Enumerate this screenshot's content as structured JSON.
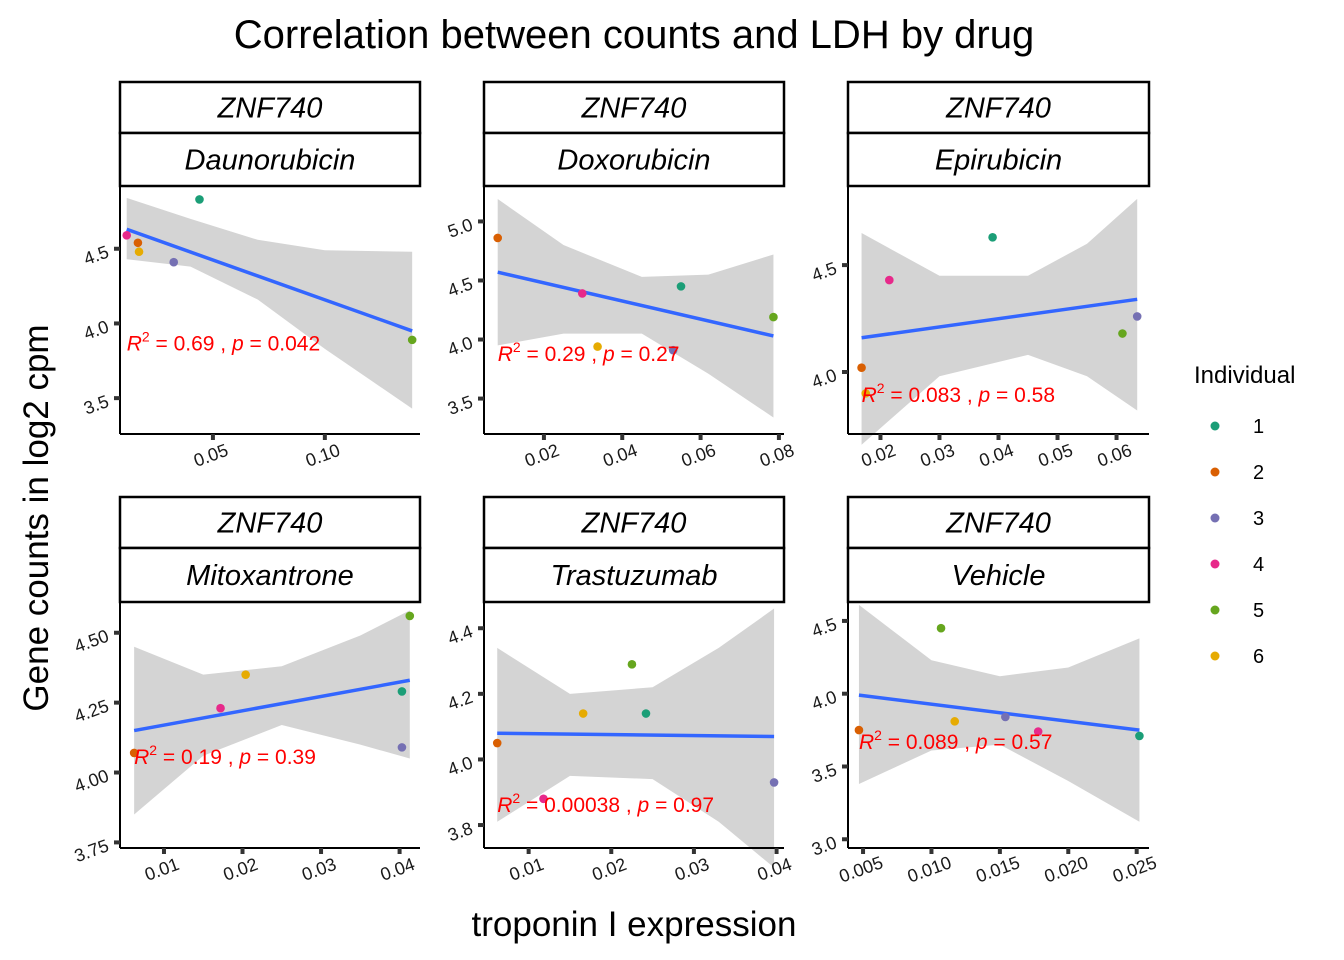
{
  "chart_data": {
    "type": "scatter",
    "title": "Correlation between counts and LDH by drug",
    "xlabel": "troponin I expression",
    "ylabel": "Gene counts in log2 cpm",
    "legend": {
      "title": "Individual",
      "placement": "right",
      "entries": [
        {
          "label": "1",
          "color": "#1B9E77"
        },
        {
          "label": "2",
          "color": "#D95F02"
        },
        {
          "label": "3",
          "color": "#7570B3"
        },
        {
          "label": "4",
          "color": "#E7298A"
        },
        {
          "label": "5",
          "color": "#66A61E"
        },
        {
          "label": "6",
          "color": "#E6AB02"
        }
      ]
    },
    "grid": false,
    "fit_line_color": "#3366FF",
    "ci_band_color": "#d4d4d4",
    "panels": [
      {
        "gene": "ZNF740",
        "drug": "Daunorubicin",
        "xlim": [
          0.0085,
          0.1425
        ],
        "ylim": [
          3.26,
          4.92
        ],
        "xticks": [
          0.05,
          0.1
        ],
        "xtick_labels": [
          "0.05",
          "0.10"
        ],
        "yticks": [
          3.5,
          4.0,
          4.5
        ],
        "ytick_labels": [
          "3.5",
          "4.0",
          "4.5"
        ],
        "points": [
          {
            "ind": "1",
            "x": 0.044,
            "y": 4.83
          },
          {
            "ind": "2",
            "x": 0.0165,
            "y": 4.54
          },
          {
            "ind": "3",
            "x": 0.0325,
            "y": 4.41
          },
          {
            "ind": "4",
            "x": 0.0115,
            "y": 4.59
          },
          {
            "ind": "5",
            "x": 0.139,
            "y": 3.89
          },
          {
            "ind": "6",
            "x": 0.017,
            "y": 4.48
          }
        ],
        "fit": [
          [
            0.0115,
            4.63
          ],
          [
            0.139,
            3.95
          ]
        ],
        "band_upper": [
          [
            0.0115,
            4.84
          ],
          [
            0.04,
            4.7
          ],
          [
            0.07,
            4.56
          ],
          [
            0.1,
            4.49
          ],
          [
            0.139,
            4.48
          ]
        ],
        "band_lower": [
          [
            0.0115,
            4.43
          ],
          [
            0.04,
            4.38
          ],
          [
            0.07,
            4.16
          ],
          [
            0.1,
            3.83
          ],
          [
            0.139,
            3.43
          ]
        ],
        "annotation": {
          "r2": "0.69",
          "p": "0.042",
          "x": 0.0115,
          "y": 3.82
        }
      },
      {
        "gene": "ZNF740",
        "drug": "Doxorubicin",
        "xlim": [
          0.0047,
          0.0813
        ],
        "ylim": [
          3.2,
          5.3
        ],
        "xticks": [
          0.02,
          0.04,
          0.06,
          0.08
        ],
        "xtick_labels": [
          "0.02",
          "0.04",
          "0.06",
          "0.08"
        ],
        "yticks": [
          3.5,
          4.0,
          4.5,
          5.0
        ],
        "ytick_labels": [
          "3.5",
          "4.0",
          "4.5",
          "5.0"
        ],
        "points": [
          {
            "ind": "1",
            "x": 0.055,
            "y": 4.45
          },
          {
            "ind": "2",
            "x": 0.0082,
            "y": 4.86
          },
          {
            "ind": "3",
            "x": 0.053,
            "y": 3.91
          },
          {
            "ind": "4",
            "x": 0.0298,
            "y": 4.39
          },
          {
            "ind": "5",
            "x": 0.0786,
            "y": 4.19
          },
          {
            "ind": "6",
            "x": 0.0337,
            "y": 3.94
          }
        ],
        "fit": [
          [
            0.0082,
            4.57
          ],
          [
            0.0786,
            4.03
          ]
        ],
        "band_upper": [
          [
            0.0082,
            5.19
          ],
          [
            0.025,
            4.8
          ],
          [
            0.045,
            4.53
          ],
          [
            0.062,
            4.55
          ],
          [
            0.0786,
            4.72
          ]
        ],
        "band_lower": [
          [
            0.0082,
            3.95
          ],
          [
            0.025,
            4.05
          ],
          [
            0.045,
            4.05
          ],
          [
            0.062,
            3.71
          ],
          [
            0.0786,
            3.34
          ]
        ],
        "annotation": {
          "r2": "0.29",
          "p": "0.27",
          "x": 0.0082,
          "y": 3.82
        }
      },
      {
        "gene": "ZNF740",
        "drug": "Epirubicin",
        "xlim": [
          0.0145,
          0.0655
        ],
        "ylim": [
          3.71,
          4.87
        ],
        "xticks": [
          0.02,
          0.03,
          0.04,
          0.05,
          0.06
        ],
        "xtick_labels": [
          "0.02",
          "0.03",
          "0.04",
          "0.05",
          "0.06"
        ],
        "yticks": [
          4.0,
          4.5
        ],
        "ytick_labels": [
          "4.0",
          "4.5"
        ],
        "points": [
          {
            "ind": "1",
            "x": 0.039,
            "y": 4.63
          },
          {
            "ind": "2",
            "x": 0.0168,
            "y": 4.02
          },
          {
            "ind": "3",
            "x": 0.0635,
            "y": 4.26
          },
          {
            "ind": "4",
            "x": 0.0215,
            "y": 4.43
          },
          {
            "ind": "5",
            "x": 0.061,
            "y": 4.18
          },
          {
            "ind": "6",
            "x": 0.0175,
            "y": 3.9
          }
        ],
        "fit": [
          [
            0.0168,
            4.16
          ],
          [
            0.0635,
            4.34
          ]
        ],
        "band_upper": [
          [
            0.0168,
            4.65
          ],
          [
            0.03,
            4.45
          ],
          [
            0.045,
            4.45
          ],
          [
            0.055,
            4.6
          ],
          [
            0.0635,
            4.81
          ]
        ],
        "band_lower": [
          [
            0.0168,
            3.66
          ],
          [
            0.03,
            3.98
          ],
          [
            0.045,
            4.08
          ],
          [
            0.055,
            3.98
          ],
          [
            0.0635,
            3.82
          ]
        ],
        "annotation": {
          "r2": "0.083",
          "p": "0.58",
          "x": 0.0168,
          "y": 3.86
        }
      },
      {
        "gene": "ZNF740",
        "drug": "Mitoxantrone",
        "xlim": [
          0.0044,
          0.0426
        ],
        "ylim": [
          3.73,
          4.61
        ],
        "xticks": [
          0.01,
          0.02,
          0.03,
          0.04
        ],
        "xtick_labels": [
          "0.01",
          "0.02",
          "0.03",
          "0.04"
        ],
        "yticks": [
          3.75,
          4.0,
          4.25,
          4.5
        ],
        "ytick_labels": [
          "3.75",
          "4.00",
          "4.25",
          "4.50"
        ],
        "points": [
          {
            "ind": "1",
            "x": 0.0403,
            "y": 4.29
          },
          {
            "ind": "2",
            "x": 0.0062,
            "y": 4.07
          },
          {
            "ind": "3",
            "x": 0.0403,
            "y": 4.09
          },
          {
            "ind": "4",
            "x": 0.0172,
            "y": 4.23
          },
          {
            "ind": "5",
            "x": 0.0413,
            "y": 4.56
          },
          {
            "ind": "6",
            "x": 0.0204,
            "y": 4.35
          }
        ],
        "fit": [
          [
            0.0062,
            4.15
          ],
          [
            0.0413,
            4.33
          ]
        ],
        "band_upper": [
          [
            0.0062,
            4.45
          ],
          [
            0.015,
            4.35
          ],
          [
            0.025,
            4.38
          ],
          [
            0.035,
            4.49
          ],
          [
            0.0413,
            4.58
          ]
        ],
        "band_lower": [
          [
            0.0062,
            3.85
          ],
          [
            0.015,
            4.06
          ],
          [
            0.025,
            4.17
          ],
          [
            0.035,
            4.1
          ],
          [
            0.0413,
            4.05
          ]
        ],
        "annotation": {
          "r2": "0.19",
          "p": "0.39",
          "x": 0.0062,
          "y": 4.03
        }
      },
      {
        "gene": "ZNF740",
        "drug": "Trastuzumab",
        "xlim": [
          0.0046,
          0.0409
        ],
        "ylim": [
          3.73,
          4.48
        ],
        "xticks": [
          0.01,
          0.02,
          0.03,
          0.04
        ],
        "xtick_labels": [
          "0.01",
          "0.02",
          "0.03",
          "0.04"
        ],
        "yticks": [
          3.8,
          4.0,
          4.2,
          4.4
        ],
        "ytick_labels": [
          "3.8",
          "4.0",
          "4.2",
          "4.4"
        ],
        "points": [
          {
            "ind": "1",
            "x": 0.0242,
            "y": 4.14
          },
          {
            "ind": "2",
            "x": 0.0062,
            "y": 4.05
          },
          {
            "ind": "3",
            "x": 0.0397,
            "y": 3.93
          },
          {
            "ind": "4",
            "x": 0.0118,
            "y": 3.88
          },
          {
            "ind": "5",
            "x": 0.0225,
            "y": 4.29
          },
          {
            "ind": "6",
            "x": 0.0166,
            "y": 4.14
          }
        ],
        "fit": [
          [
            0.0062,
            4.08
          ],
          [
            0.0397,
            4.07
          ]
        ],
        "band_upper": [
          [
            0.0062,
            4.34
          ],
          [
            0.015,
            4.2
          ],
          [
            0.025,
            4.22
          ],
          [
            0.033,
            4.34
          ],
          [
            0.0397,
            4.46
          ]
        ],
        "band_lower": [
          [
            0.0062,
            3.81
          ],
          [
            0.015,
            3.95
          ],
          [
            0.025,
            3.94
          ],
          [
            0.033,
            3.81
          ],
          [
            0.0397,
            3.67
          ]
        ],
        "annotation": {
          "r2": "0.00038",
          "p": "0.97",
          "x": 0.0062,
          "y": 3.84
        }
      },
      {
        "gene": "ZNF740",
        "drug": "Vehicle",
        "xlim": [
          0.0039,
          0.0259
        ],
        "ylim": [
          2.94,
          4.63
        ],
        "xticks": [
          0.005,
          0.01,
          0.015,
          0.02,
          0.025
        ],
        "xtick_labels": [
          "0.005",
          "0.010",
          "0.015",
          "0.020",
          "0.025"
        ],
        "yticks": [
          3.0,
          3.5,
          4.0,
          4.5
        ],
        "ytick_labels": [
          "3.0",
          "3.5",
          "4.0",
          "4.5"
        ],
        "points": [
          {
            "ind": "1",
            "x": 0.0252,
            "y": 3.71
          },
          {
            "ind": "2",
            "x": 0.0047,
            "y": 3.75
          },
          {
            "ind": "3",
            "x": 0.0154,
            "y": 3.84
          },
          {
            "ind": "4",
            "x": 0.0178,
            "y": 3.74
          },
          {
            "ind": "5",
            "x": 0.0107,
            "y": 4.45
          },
          {
            "ind": "6",
            "x": 0.0117,
            "y": 3.81
          }
        ],
        "fit": [
          [
            0.0047,
            3.99
          ],
          [
            0.0252,
            3.75
          ]
        ],
        "band_upper": [
          [
            0.0047,
            4.61
          ],
          [
            0.01,
            4.23
          ],
          [
            0.015,
            4.12
          ],
          [
            0.02,
            4.18
          ],
          [
            0.0252,
            4.38
          ]
        ],
        "band_lower": [
          [
            0.0047,
            3.38
          ],
          [
            0.01,
            3.61
          ],
          [
            0.015,
            3.65
          ],
          [
            0.02,
            3.4
          ],
          [
            0.0252,
            3.12
          ]
        ],
        "annotation": {
          "r2": "0.089",
          "p": "0.57",
          "x": 0.0047,
          "y": 3.62
        }
      }
    ]
  }
}
